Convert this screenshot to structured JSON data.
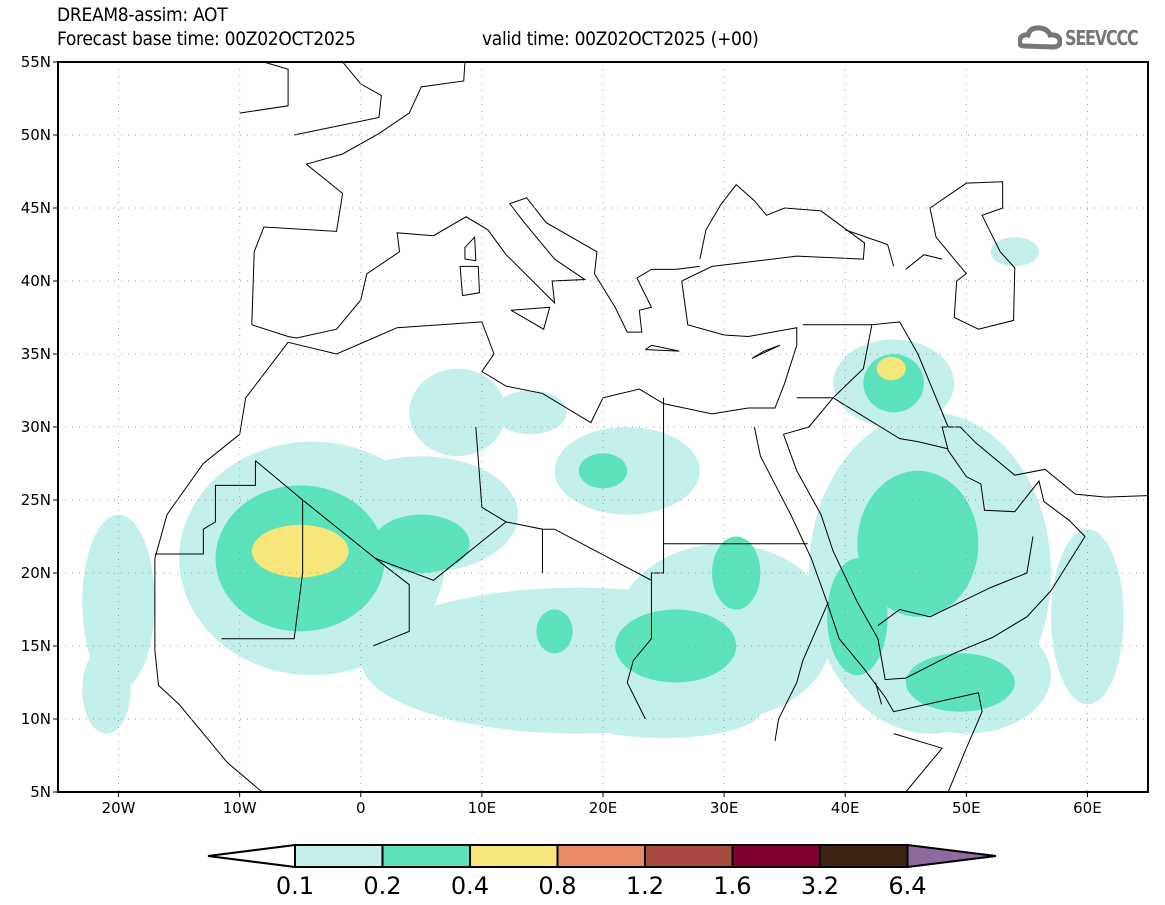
{
  "header": {
    "title": "DREAM8-assim: AOT",
    "base_time": "Forecast base time: 00Z02OCT2025",
    "valid_time": "valid time: 00Z02OCT2025 (+00)"
  },
  "logo": {
    "text": "SEEVCCC",
    "icon": "cloud-icon"
  },
  "map": {
    "lon_range": [
      -25,
      65
    ],
    "lat_range": [
      5,
      55
    ],
    "lat_labels": [
      "5N",
      "10N",
      "15N",
      "20N",
      "25N",
      "30N",
      "35N",
      "40N",
      "45N",
      "50N",
      "55N"
    ],
    "lon_labels": [
      "20W",
      "10W",
      "0",
      "10E",
      "20E",
      "30E",
      "40E",
      "50E",
      "60E"
    ]
  },
  "colorbar": {
    "labels": [
      "0.1",
      "0.2",
      "0.4",
      "0.8",
      "1.2",
      "1.6",
      "3.2",
      "6.4"
    ],
    "colors": [
      "#ffffff",
      "#c3f0eb",
      "#5de3bc",
      "#f7e67a",
      "#ea8a68",
      "#a84a42",
      "#80002f",
      "#3b2414",
      "#8f6a9e"
    ]
  }
}
